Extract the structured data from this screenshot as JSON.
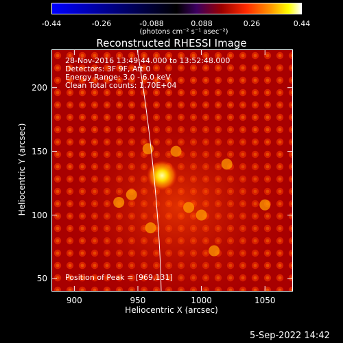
{
  "colorbar": {
    "ticks": [
      "-0.44",
      "-0.26",
      "-0.088",
      "0.088",
      "0.26",
      "0.44"
    ],
    "unit_label": "(photons cm⁻² s⁻¹ asec⁻²)",
    "range": [
      -0.44,
      0.44
    ]
  },
  "title": "Reconstructed RHESSI Image",
  "info": {
    "line1": "28-Nov-2016 13:49:44.000 to 13:52:48.000",
    "line2": "Detectors: 3F 9F, Att 0",
    "line3": "Energy Range: 3.0 - 6.0 keV",
    "line4": "Clean     Total counts: 1.70E+04"
  },
  "peak_text": "Position of Peak = [969,131]",
  "timestamp": "5-Sep-2022 14:42",
  "chart_data": {
    "type": "heatmap",
    "title": "Reconstructed RHESSI Image",
    "xlabel": "Heliocentric X (arcsec)",
    "ylabel": "Heliocentric Y (arcsec)",
    "xlim": [
      882,
      1072
    ],
    "ylim": [
      40,
      230
    ],
    "x_ticks": [
      "900",
      "950",
      "1000",
      "1050"
    ],
    "y_ticks": [
      "50",
      "100",
      "150",
      "200"
    ],
    "x_tick_values": [
      900,
      950,
      1000,
      1050
    ],
    "y_tick_values": [
      50,
      100,
      150,
      200
    ],
    "colorbar_range": [
      -0.44,
      0.44
    ],
    "peak": [
      969,
      131
    ],
    "colormap": "red-temperature",
    "colors": {
      "background": "#000000",
      "limb_line": "#ffffff"
    }
  }
}
